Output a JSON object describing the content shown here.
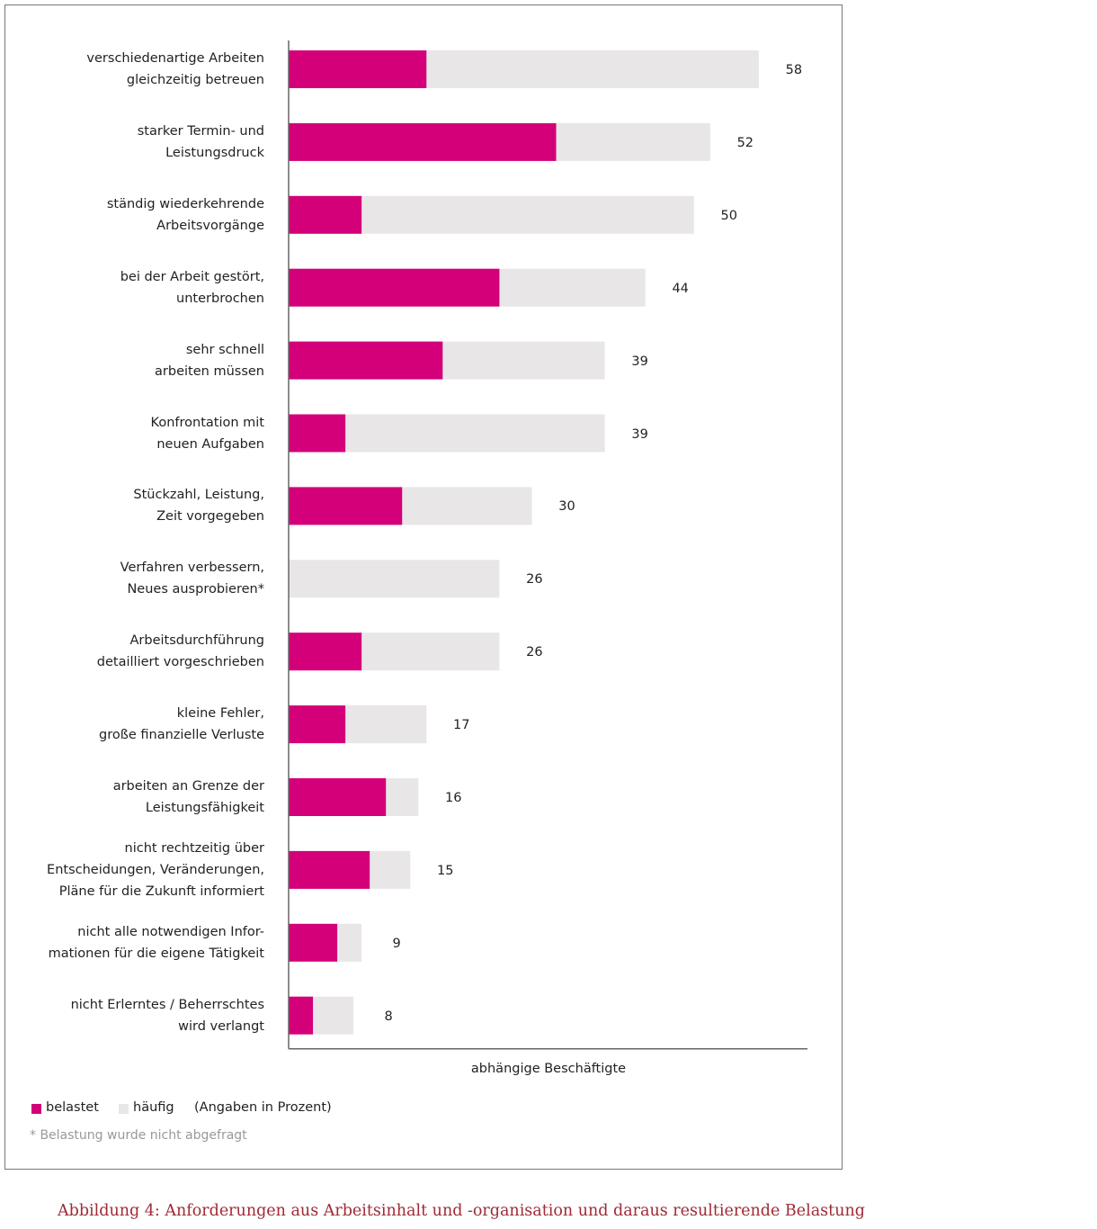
{
  "chart_data": {
    "type": "bar",
    "orientation": "horizontal",
    "overlay": true,
    "categories": [
      "verschiedenartige Arbeiten\ngleichzeitig betreuen",
      "starker Termin- und\nLeistungsdruck",
      "ständig wiederkehrende\nArbeitsvorgänge",
      "bei der Arbeit gestört,\nunterbrochen",
      "sehr schnell\narbeiten müssen",
      "Konfrontation mit\nneuen Aufgaben",
      "Stückzahl, Leistung,\nZeit vorgegeben",
      "Verfahren verbessern,\nNeues ausprobieren*",
      "Arbeitsdurchführung\ndetailliert vorgeschrieben",
      "kleine Fehler,\ngroße finanzielle Verluste",
      "arbeiten an Grenze der\nLeistungsfähigkeit",
      "nicht rechtzeitig über\nEntscheidungen, Veränderungen,\nPläne für die Zukunft informiert",
      "nicht alle notwendigen Infor-\nmationen für die eigene Tätigkeit",
      "nicht Erlerntes / Beherrschtes\nwird verlangt"
    ],
    "series": [
      {
        "name": "häufig",
        "color": "#e8e6e7",
        "values": [
          58,
          52,
          50,
          44,
          39,
          39,
          30,
          26,
          26,
          17,
          16,
          15,
          9,
          8
        ]
      },
      {
        "name": "belastet",
        "color": "#d4007a",
        "values": [
          17,
          33,
          9,
          26,
          19,
          7,
          14,
          null,
          9,
          7,
          12,
          10,
          6,
          3
        ]
      }
    ],
    "xlim": [
      0,
      64
    ],
    "xlabel": "abhängige Beschäftigte",
    "note": "(Angaben in Prozent)",
    "footnote": "* Belastung wurde nicht abgefragt",
    "caption": "Abbildung 4: Anforderungen aus Arbeitsinhalt und -organisation und daraus resultierende Belastung"
  }
}
